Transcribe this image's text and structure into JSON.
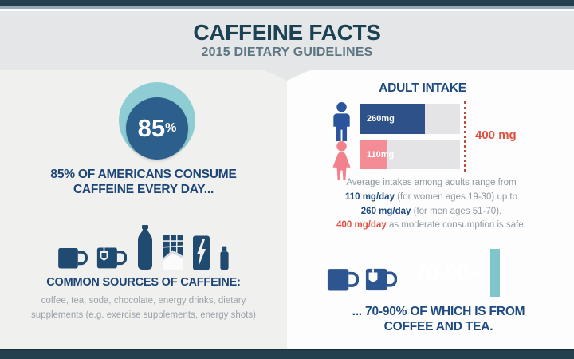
{
  "header": {
    "title": "CAFFEINE FACTS",
    "subtitle": "2015 DIETARY GUIDELINES"
  },
  "left": {
    "stat_value": "85",
    "stat_unit": "%",
    "caption_line1": "85% OF AMERICANS CONSUME",
    "caption_line2": "CAFFEINE EVERY DAY...",
    "sources_title": "COMMON SOURCES OF CAFFEINE:",
    "sources_line1": "coffee, tea, soda, chocolate, energy drinks, dietary",
    "sources_line2": "supplements (e.g. exercise supplements, energy shots)",
    "source_icons": [
      "coffee-mug",
      "tea-cup",
      "soda-bottle",
      "chocolate-bar",
      "energy-drink-can",
      "energy-shot-bottle"
    ]
  },
  "right": {
    "intake": {
      "title": "ADULT INTAKE",
      "limit_label": "400 mg",
      "bars": [
        {
          "group": "men",
          "label": "260mg",
          "value": 260,
          "max": 400,
          "color": "#2d5188"
        },
        {
          "group": "women",
          "label": "110mg",
          "value": 110,
          "max": 400,
          "color": "#f48c95"
        }
      ]
    },
    "paragraph": {
      "line1": "Average intakes among adults range from",
      "line2_bold": "110 mg/day",
      "line2_rest": " (for women ages 19-30) up to",
      "line3_bold": "260 mg/day",
      "line3_rest": " (for men ages 51-70).",
      "line4_bold": "400 mg/day",
      "line4_rest": " as moderate consumption is safe."
    },
    "coffee_tea": {
      "stat_value": "70-90",
      "stat_unit": "%",
      "caption_line1": "... 70-90% OF WHICH IS FROM",
      "caption_line2": "COFFEE AND TEA."
    }
  },
  "colors": {
    "frame_bar": "#24404e",
    "header_band": "#e5e6e7",
    "left_panel": "#f0f0ee",
    "right_panel": "#fdfdfd",
    "navy_text": "#1d4a80",
    "teal_ring": "#8ecdd3",
    "donut_fill": "#2d5f8d",
    "men_bar": "#2d5188",
    "women_bar": "#f48c95",
    "limit_red": "#de5140",
    "box_teal_strip": "#7fc6cb"
  },
  "chart_data": {
    "type": "bar",
    "orientation": "horizontal",
    "title": "ADULT INTAKE",
    "categories": [
      "men (ages 51-70)",
      "women (ages 19-30)"
    ],
    "values": [
      260,
      110
    ],
    "unit": "mg/day",
    "xlim": [
      0,
      400
    ],
    "reference_line": {
      "value": 400,
      "label": "400 mg",
      "meaning": "moderate daily consumption considered safe"
    },
    "related_stats": [
      {
        "value": "85%",
        "label": "of Americans consume caffeine every day"
      },
      {
        "value": "70-90%",
        "label": "of caffeine intake is from coffee and tea"
      }
    ]
  }
}
